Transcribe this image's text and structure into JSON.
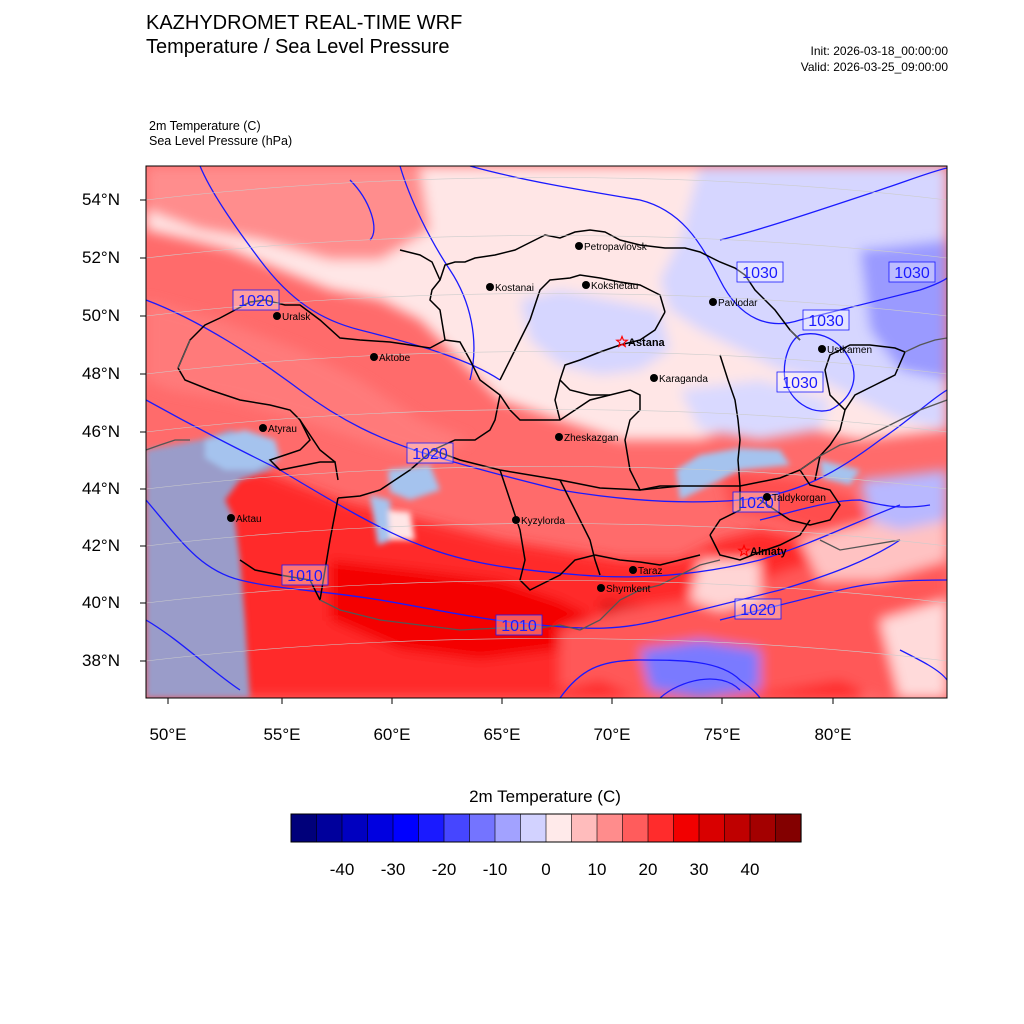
{
  "header": {
    "title_line1": "KAZHYDROMET REAL-TIME WRF",
    "title_line2": "Temperature / Sea Level Pressure",
    "init": "Init: 2026-03-18_00:00:00",
    "valid": "Valid: 2026-03-25_09:00:00",
    "var1": "2m Temperature   (C)",
    "var2": "Sea Level Pressure   (hPa)"
  },
  "axes": {
    "lat_labels": [
      "54°N",
      "52°N",
      "50°N",
      "48°N",
      "46°N",
      "44°N",
      "42°N",
      "40°N",
      "38°N"
    ],
    "lon_labels": [
      "50°E",
      "55°E",
      "60°E",
      "65°E",
      "70°E",
      "75°E",
      "80°E"
    ]
  },
  "cities": [
    {
      "name": "Petropavlovsk",
      "kind": "dot"
    },
    {
      "name": "Kostanai",
      "kind": "dot"
    },
    {
      "name": "Kokshetau",
      "kind": "dot"
    },
    {
      "name": "Pavlodar",
      "kind": "dot"
    },
    {
      "name": "Uralsk",
      "kind": "dot"
    },
    {
      "name": "Aktobe",
      "kind": "dot"
    },
    {
      "name": "Astana",
      "kind": "star"
    },
    {
      "name": "Ustkamen",
      "kind": "dot"
    },
    {
      "name": "Karaganda",
      "kind": "dot"
    },
    {
      "name": "Atyrau",
      "kind": "dot"
    },
    {
      "name": "Zheskazgan",
      "kind": "dot"
    },
    {
      "name": "Taldykorgan",
      "kind": "dot"
    },
    {
      "name": "Aktau",
      "kind": "dot"
    },
    {
      "name": "Kyzylorda",
      "kind": "dot"
    },
    {
      "name": "Almaty",
      "kind": "star"
    },
    {
      "name": "Taraz",
      "kind": "dot"
    },
    {
      "name": "Shymkent",
      "kind": "dot"
    }
  ],
  "isobar_labels": [
    "1020",
    "1030",
    "1030",
    "1030",
    "1030",
    "1020",
    "1020",
    "1010",
    "1010",
    "1020"
  ],
  "colorbar": {
    "title": "2m Temperature  (C)",
    "tick_labels": [
      "-40",
      "-30",
      "-20",
      "-10",
      "0",
      "10",
      "20",
      "30",
      "40"
    ],
    "colors": [
      "#00007a",
      "#00009c",
      "#0000c0",
      "#0000e0",
      "#0000ff",
      "#1a1aff",
      "#4646ff",
      "#7474ff",
      "#a2a2ff",
      "#d2d2ff",
      "#ffeaea",
      "#ffbcbc",
      "#ff8c8c",
      "#ff5c5c",
      "#ff2c2c",
      "#f20000",
      "#d90000",
      "#bf0000",
      "#a30000",
      "#830000"
    ]
  },
  "colors": {
    "isobar": "#1a1aff",
    "border": "#000000",
    "warm": "#ff2a2a",
    "mild": "#ff6b6b",
    "cool_pink": "#ffe8e8",
    "cold": "#d4d4ff",
    "caspian": "#9e9ecb"
  }
}
